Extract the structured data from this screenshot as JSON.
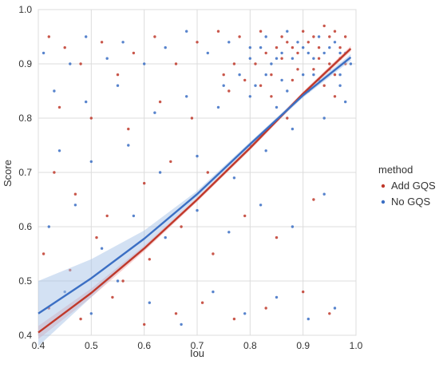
{
  "chart_data": {
    "type": "scatter",
    "xlabel": "Iou",
    "ylabel": "Score",
    "xlim": [
      0.4,
      1.0
    ],
    "ylim": [
      0.4,
      1.0
    ],
    "x_ticks": [
      "0.4",
      "0.5",
      "0.6",
      "0.7",
      "0.8",
      "0.9",
      "1.0"
    ],
    "y_ticks": [
      "0.4",
      "0.5",
      "0.6",
      "0.7",
      "0.8",
      "0.9",
      "1.0"
    ],
    "grid": true,
    "legend": {
      "title": "method",
      "placement": "right",
      "entries": [
        "Add GQS",
        "No GQS"
      ]
    },
    "series": [
      {
        "name": "Add GQS",
        "color": "#c0392b",
        "regression": {
          "x": [
            0.4,
            0.5,
            0.6,
            0.7,
            0.8,
            0.9,
            0.99
          ],
          "y": [
            0.405,
            0.478,
            0.56,
            0.65,
            0.745,
            0.845,
            0.928
          ]
        },
        "ci_halfwidth": [
          0.012,
          0.008,
          0.005,
          0.004,
          0.004,
          0.004,
          0.005
        ],
        "sample_points": [
          [
            0.42,
            0.95
          ],
          [
            0.45,
            0.93
          ],
          [
            0.48,
            0.9
          ],
          [
            0.52,
            0.94
          ],
          [
            0.55,
            0.88
          ],
          [
            0.58,
            0.92
          ],
          [
            0.62,
            0.95
          ],
          [
            0.66,
            0.9
          ],
          [
            0.7,
            0.94
          ],
          [
            0.74,
            0.96
          ],
          [
            0.78,
            0.95
          ],
          [
            0.82,
            0.96
          ],
          [
            0.86,
            0.95
          ],
          [
            0.88,
            0.93
          ],
          [
            0.9,
            0.96
          ],
          [
            0.92,
            0.95
          ],
          [
            0.94,
            0.97
          ],
          [
            0.96,
            0.96
          ],
          [
            0.98,
            0.95
          ],
          [
            0.93,
            0.91
          ],
          [
            0.44,
            0.82
          ],
          [
            0.5,
            0.8
          ],
          [
            0.57,
            0.78
          ],
          [
            0.63,
            0.83
          ],
          [
            0.69,
            0.8
          ],
          [
            0.76,
            0.85
          ],
          [
            0.84,
            0.88
          ],
          [
            0.89,
            0.89
          ],
          [
            0.95,
            0.9
          ],
          [
            0.97,
            0.93
          ],
          [
            0.43,
            0.7
          ],
          [
            0.47,
            0.66
          ],
          [
            0.53,
            0.62
          ],
          [
            0.6,
            0.68
          ],
          [
            0.65,
            0.72
          ],
          [
            0.72,
            0.7
          ],
          [
            0.8,
            0.75
          ],
          [
            0.87,
            0.8
          ],
          [
            0.91,
            0.85
          ],
          [
            0.96,
            0.88
          ],
          [
            0.41,
            0.55
          ],
          [
            0.46,
            0.52
          ],
          [
            0.51,
            0.58
          ],
          [
            0.56,
            0.5
          ],
          [
            0.61,
            0.54
          ],
          [
            0.67,
            0.6
          ],
          [
            0.73,
            0.55
          ],
          [
            0.79,
            0.62
          ],
          [
            0.85,
            0.58
          ],
          [
            0.92,
            0.65
          ],
          [
            0.42,
            0.45
          ],
          [
            0.48,
            0.43
          ],
          [
            0.54,
            0.47
          ],
          [
            0.6,
            0.42
          ],
          [
            0.66,
            0.44
          ],
          [
            0.71,
            0.46
          ],
          [
            0.77,
            0.43
          ],
          [
            0.83,
            0.45
          ],
          [
            0.9,
            0.48
          ],
          [
            0.95,
            0.44
          ],
          [
            0.81,
            0.9
          ],
          [
            0.83,
            0.92
          ],
          [
            0.85,
            0.93
          ],
          [
            0.87,
            0.94
          ],
          [
            0.89,
            0.92
          ],
          [
            0.91,
            0.94
          ],
          [
            0.93,
            0.93
          ],
          [
            0.95,
            0.95
          ],
          [
            0.97,
            0.91
          ],
          [
            0.86,
            0.91
          ],
          [
            0.75,
            0.88
          ],
          [
            0.77,
            0.9
          ],
          [
            0.79,
            0.87
          ],
          [
            0.82,
            0.86
          ],
          [
            0.84,
            0.84
          ],
          [
            0.88,
            0.87
          ],
          [
            0.92,
            0.89
          ],
          [
            0.94,
            0.86
          ],
          [
            0.96,
            0.84
          ],
          [
            0.98,
            0.9
          ]
        ]
      },
      {
        "name": "No GQS",
        "color": "#3b6fc4",
        "regression": {
          "x": [
            0.4,
            0.5,
            0.6,
            0.7,
            0.8,
            0.9,
            0.99
          ],
          "y": [
            0.44,
            0.505,
            0.578,
            0.66,
            0.752,
            0.842,
            0.912
          ]
        },
        "ci_halfwidth": [
          0.06,
          0.035,
          0.015,
          0.006,
          0.004,
          0.004,
          0.006
        ],
        "sample_points": [
          [
            0.41,
            0.92
          ],
          [
            0.46,
            0.9
          ],
          [
            0.49,
            0.95
          ],
          [
            0.53,
            0.91
          ],
          [
            0.56,
            0.94
          ],
          [
            0.6,
            0.9
          ],
          [
            0.64,
            0.93
          ],
          [
            0.68,
            0.96
          ],
          [
            0.72,
            0.92
          ],
          [
            0.76,
            0.94
          ],
          [
            0.8,
            0.93
          ],
          [
            0.83,
            0.95
          ],
          [
            0.85,
            0.91
          ],
          [
            0.87,
            0.96
          ],
          [
            0.89,
            0.94
          ],
          [
            0.91,
            0.92
          ],
          [
            0.93,
            0.95
          ],
          [
            0.95,
            0.93
          ],
          [
            0.97,
            0.92
          ],
          [
            0.99,
            0.9
          ],
          [
            0.43,
            0.85
          ],
          [
            0.49,
            0.83
          ],
          [
            0.55,
            0.86
          ],
          [
            0.62,
            0.81
          ],
          [
            0.68,
            0.84
          ],
          [
            0.74,
            0.82
          ],
          [
            0.81,
            0.86
          ],
          [
            0.86,
            0.87
          ],
          [
            0.92,
            0.88
          ],
          [
            0.97,
            0.86
          ],
          [
            0.44,
            0.74
          ],
          [
            0.5,
            0.72
          ],
          [
            0.57,
            0.75
          ],
          [
            0.63,
            0.7
          ],
          [
            0.7,
            0.73
          ],
          [
            0.77,
            0.69
          ],
          [
            0.83,
            0.74
          ],
          [
            0.88,
            0.78
          ],
          [
            0.94,
            0.8
          ],
          [
            0.98,
            0.83
          ],
          [
            0.42,
            0.6
          ],
          [
            0.47,
            0.64
          ],
          [
            0.52,
            0.56
          ],
          [
            0.58,
            0.62
          ],
          [
            0.64,
            0.58
          ],
          [
            0.7,
            0.63
          ],
          [
            0.76,
            0.59
          ],
          [
            0.82,
            0.64
          ],
          [
            0.88,
            0.6
          ],
          [
            0.94,
            0.66
          ],
          [
            0.45,
            0.48
          ],
          [
            0.5,
            0.44
          ],
          [
            0.55,
            0.5
          ],
          [
            0.61,
            0.46
          ],
          [
            0.67,
            0.42
          ],
          [
            0.73,
            0.48
          ],
          [
            0.79,
            0.44
          ],
          [
            0.85,
            0.47
          ],
          [
            0.91,
            0.43
          ],
          [
            0.96,
            0.45
          ],
          [
            0.8,
            0.91
          ],
          [
            0.82,
            0.93
          ],
          [
            0.84,
            0.9
          ],
          [
            0.86,
            0.92
          ],
          [
            0.88,
            0.91
          ],
          [
            0.9,
            0.93
          ],
          [
            0.92,
            0.91
          ],
          [
            0.94,
            0.92
          ],
          [
            0.96,
            0.94
          ],
          [
            0.98,
            0.92
          ],
          [
            0.75,
            0.86
          ],
          [
            0.78,
            0.88
          ],
          [
            0.8,
            0.84
          ],
          [
            0.83,
            0.88
          ],
          [
            0.87,
            0.85
          ],
          [
            0.9,
            0.88
          ],
          [
            0.93,
            0.87
          ],
          [
            0.95,
            0.89
          ],
          [
            0.97,
            0.88
          ],
          [
            0.85,
            0.82
          ]
        ]
      }
    ]
  }
}
